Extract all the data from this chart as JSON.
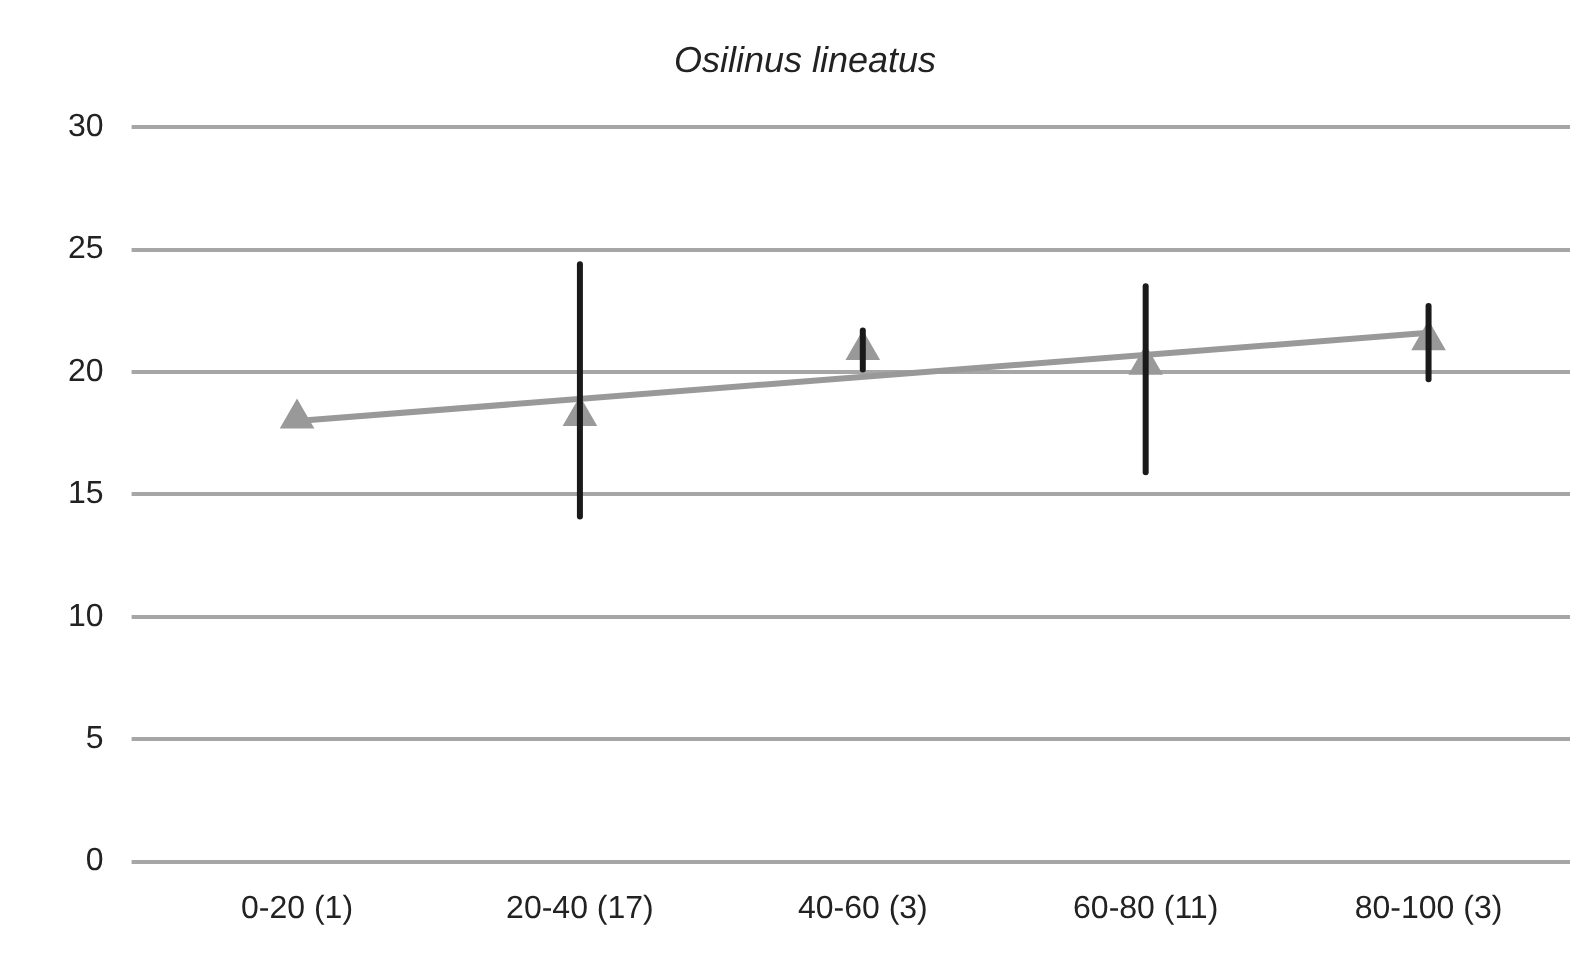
{
  "chart_data": {
    "type": "scatter",
    "title": "Osilinus lineatus",
    "categories": [
      "0-20 (1)",
      "20-40 (17)",
      "40-60 (3)",
      "60-80 (11)",
      "80-100 (3)"
    ],
    "series": [
      {
        "color": "#999999",
        "marker": "triangle",
        "values": [
          18.1,
          18.2,
          20.9,
          20.3,
          21.3
        ],
        "errors": [
          null,
          [
            14.1,
            24.4
          ],
          0.8,
          [
            15.9,
            23.5
          ],
          [
            19.7,
            22.7
          ]
        ]
      },
      {
        "type": "line",
        "color": "#999999",
        "marker": "none",
        "x": [
          "0-20 (1)",
          "80-100 (3)"
        ],
        "values": [
          18.0,
          21.6
        ]
      }
    ],
    "ylim": [
      0,
      30
    ],
    "yticks": [
      0,
      5,
      10,
      15,
      20,
      25,
      30
    ],
    "grid": "y",
    "legend": false
  }
}
